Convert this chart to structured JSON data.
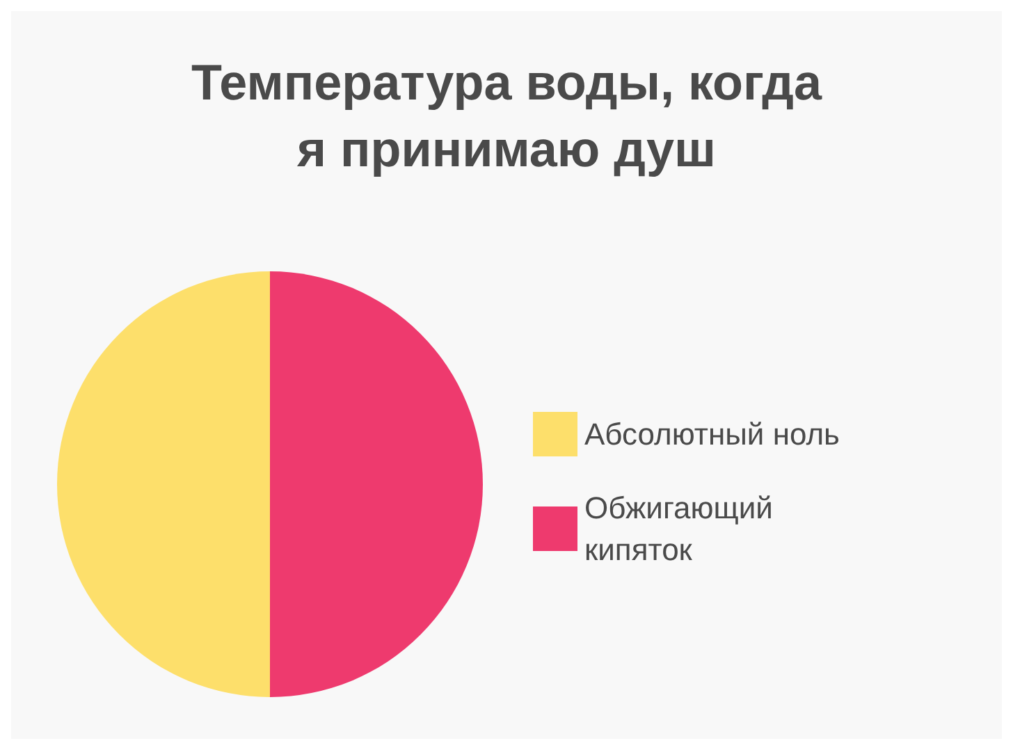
{
  "chart_data": {
    "type": "pie",
    "title": "Температура воды, когда я принимаю душ",
    "categories": [
      "Абсолютный ноль",
      "Обжигающий кипяток"
    ],
    "values": [
      50,
      50
    ],
    "colors": [
      "#fddf6b",
      "#ee3a6e"
    ],
    "legend": "right"
  }
}
